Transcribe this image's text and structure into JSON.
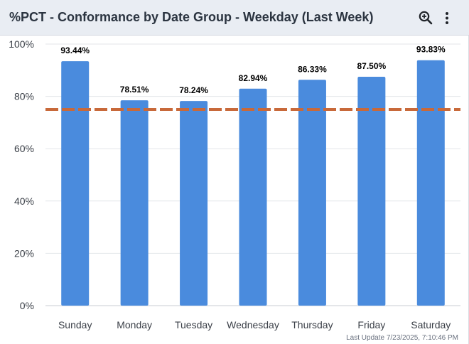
{
  "widget": {
    "title": "%PCT - Conformance by Date Group - Weekday (Last Week)",
    "zoom_icon": "zoom-in-icon",
    "menu_icon": "more-vertical-icon",
    "last_update": "Last Update 7/23/2025, 7:10:46 PM"
  },
  "colors": {
    "bar": "#4a8bdd",
    "target_line": "#c8693a",
    "grid": "#e3e6ea",
    "axis_text": "#3a3f47",
    "label_text": "#000000"
  },
  "chart_data": {
    "type": "bar",
    "categories": [
      "Sunday",
      "Monday",
      "Tuesday",
      "Wednesday",
      "Thursday",
      "Friday",
      "Saturday"
    ],
    "values": [
      93.44,
      78.51,
      78.24,
      82.94,
      86.33,
      87.5,
      93.83
    ],
    "data_labels": [
      "93.44%",
      "78.51%",
      "78.24%",
      "82.94%",
      "86.33%",
      "87.50%",
      "93.83%"
    ],
    "y_ticks": [
      0,
      20,
      40,
      60,
      80,
      100
    ],
    "y_tick_labels": [
      "0%",
      "20%",
      "40%",
      "60%",
      "80%",
      "100%"
    ],
    "ylim": [
      0,
      100
    ],
    "target_line_value": 75,
    "grid": true,
    "legend": "none"
  }
}
